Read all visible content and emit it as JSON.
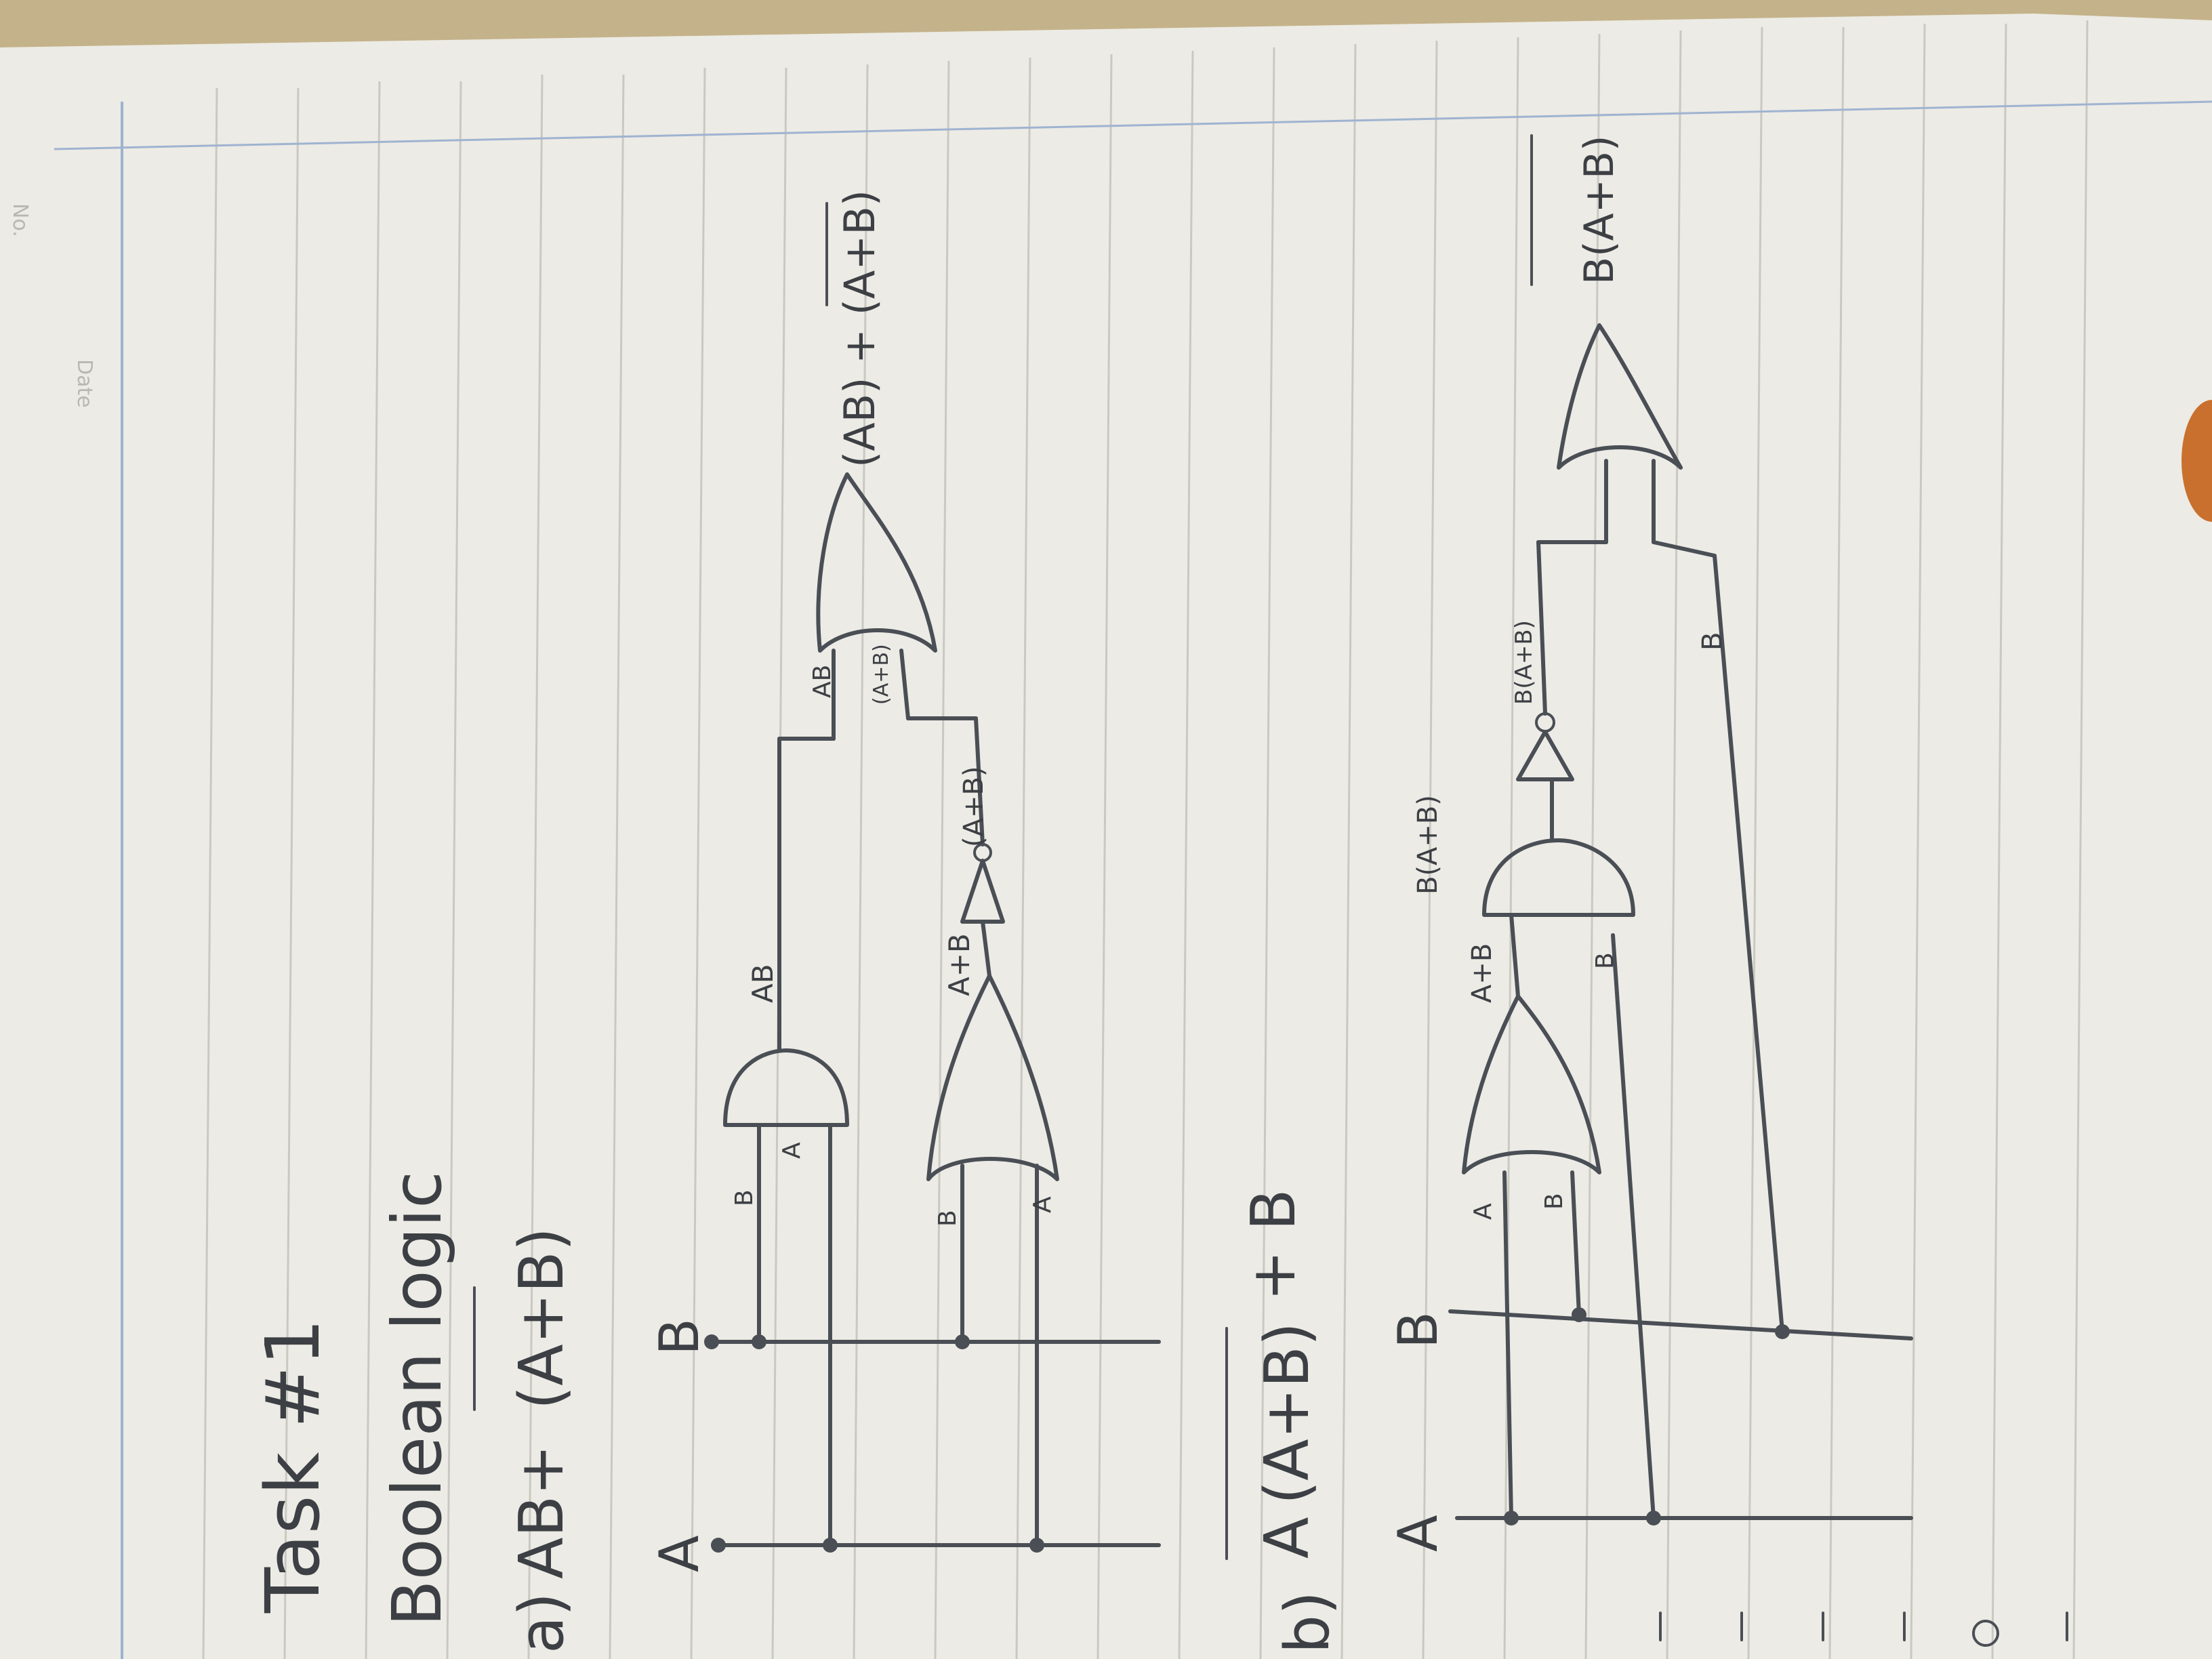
{
  "page": {
    "corner_no_label": "No.",
    "corner_date_label": "Date"
  },
  "heading": {
    "task": "Task #1",
    "topic": "Boolean logic"
  },
  "part_a": {
    "label": "a)",
    "expression_prefix": "AB+",
    "expression_overbar_term": "(A+B)",
    "input_a": "A",
    "input_b": "B",
    "and_input_b": "B",
    "and_input_a": "A",
    "or_input_b": "B",
    "or_input_a": "A",
    "and_output": "AB",
    "or_output": "A+B",
    "not_output": "(A+B)",
    "final_in_ab": "AB",
    "final_in_nor": "(A+B)",
    "output": "(AB) + (A+B)"
  },
  "part_b": {
    "label": "b)",
    "expression_a": "A",
    "expression_overbar": "(A+B)",
    "expression_suffix": "+ B",
    "input_a": "A",
    "input_b": "B",
    "or_input_a": "A",
    "or_input_b": "B",
    "or_output": "A+B",
    "and2_input_b": "B",
    "and2_output": "B(A+B)",
    "not_output": "B(A+B)",
    "final_in_b": "B",
    "output": "B(A+B)"
  }
}
